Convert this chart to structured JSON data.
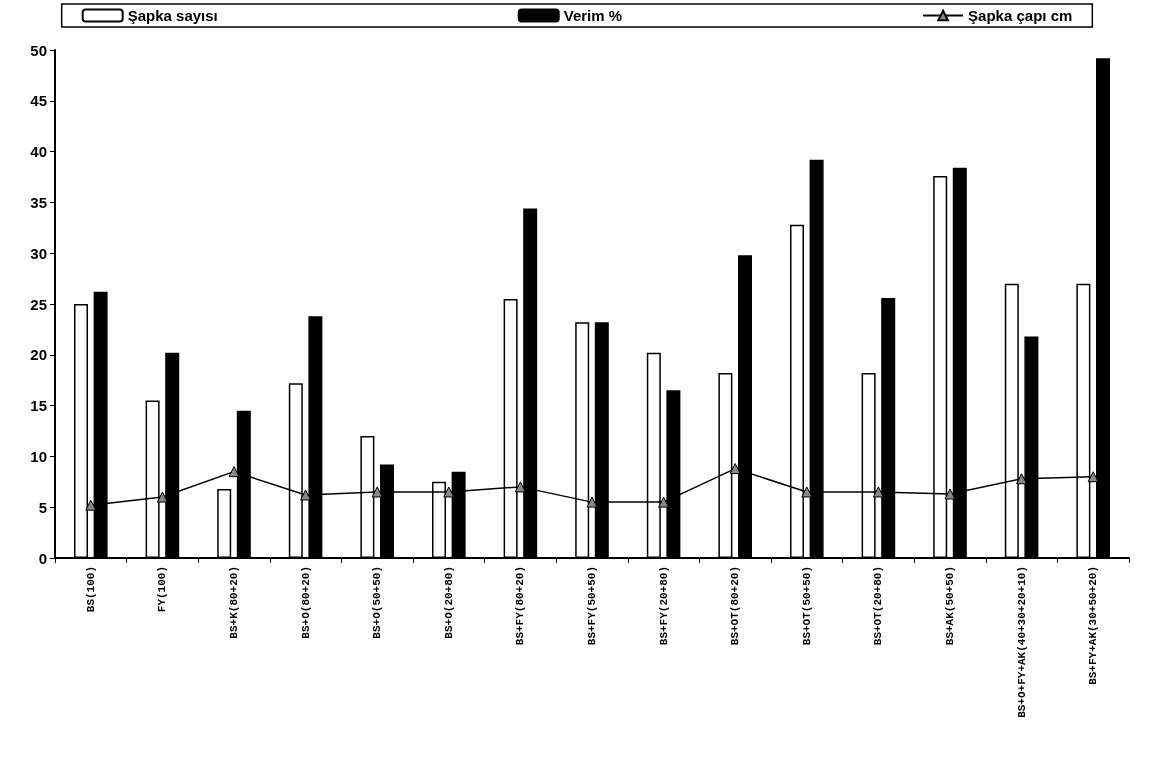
{
  "chart_data": {
    "type": "bar",
    "categories": [
      "BS(100)",
      "FY(100)",
      "BS+K(80+20)",
      "BS+O(80+20)",
      "BS+O(50+50)",
      "BS+O(20+80)",
      "BS+FY(80+20)",
      "BS+FY(50+50)",
      "BS+FY(20+80)",
      "BS+OT(80+20)",
      "BS+OT(50+50)",
      "BS+OT(20+80)",
      "BS+AK(50+50)",
      "BS+O+FY+AK(40+30+20+10)",
      "BS+FY+AK(30+50+20)"
    ],
    "series": [
      {
        "name": "Şapka sayısı",
        "color": "#ffffff",
        "values": [
          25,
          15.5,
          6.8,
          17.2,
          12,
          7.5,
          25.5,
          23.2,
          20.2,
          18.2,
          32.8,
          18.2,
          37.6,
          27,
          27
        ]
      },
      {
        "name": "Verim %",
        "color": "#000000",
        "values": [
          26.2,
          20.2,
          14.5,
          23.8,
          9.2,
          8.5,
          34.4,
          23.2,
          16.5,
          29.8,
          39.2,
          25.6,
          38.4,
          21.8,
          49.2
        ]
      },
      {
        "name": "Şapka çapı cm",
        "type": "line",
        "color": "#000000",
        "marker": "triangle",
        "values": [
          5.2,
          6,
          8.5,
          6.2,
          6.5,
          6.5,
          7,
          5.5,
          5.5,
          8.8,
          6.5,
          6.5,
          6.3,
          7.8,
          8
        ]
      }
    ],
    "ylim": [
      0,
      50
    ],
    "yticks": [
      0,
      5,
      10,
      15,
      20,
      25,
      30,
      35,
      40,
      45,
      50
    ],
    "grid": false,
    "legend": "top"
  }
}
